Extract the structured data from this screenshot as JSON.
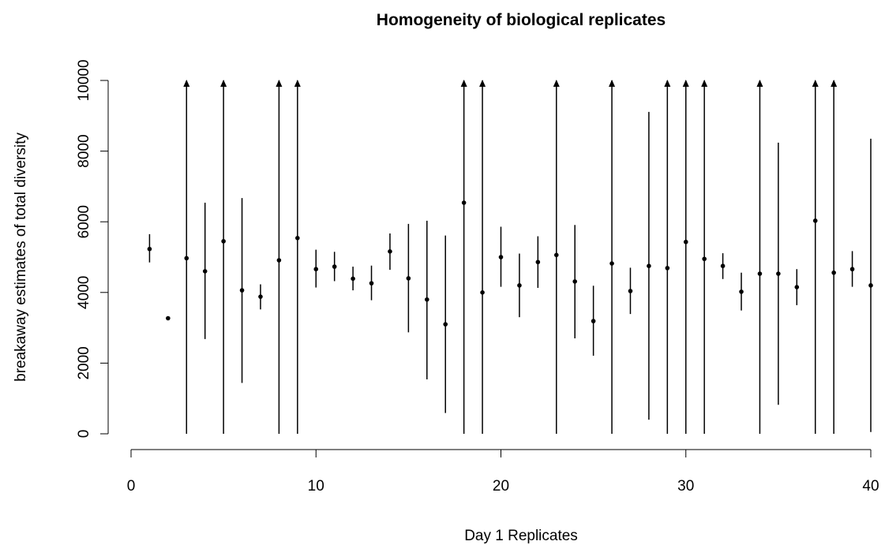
{
  "chart_data": {
    "type": "scatter",
    "title": "Homogeneity of biological replicates",
    "x_label": "Day 1 Replicates",
    "y_label": "breakaway estimates of total diversity",
    "x": [
      1,
      2,
      3,
      4,
      5,
      6,
      7,
      8,
      9,
      10,
      11,
      12,
      13,
      14,
      15,
      16,
      17,
      18,
      19,
      20,
      21,
      22,
      23,
      24,
      25,
      26,
      27,
      28,
      29,
      30,
      31,
      32,
      33,
      34,
      35,
      36,
      37,
      38,
      39,
      40
    ],
    "y": [
      5230,
      3270,
      4970,
      4600,
      5450,
      4060,
      3880,
      4910,
      5540,
      4660,
      4730,
      4390,
      4260,
      5160,
      4400,
      3800,
      3100,
      6540,
      4000,
      5000,
      4200,
      4860,
      5060,
      4310,
      3190,
      4820,
      4040,
      4750,
      4690,
      5430,
      4950,
      4750,
      4020,
      4530,
      4530,
      4150,
      6030,
      4560,
      4660,
      4200
    ],
    "lower": [
      4850,
      null,
      0,
      2680,
      0,
      1440,
      3520,
      0,
      0,
      4140,
      4320,
      4060,
      3780,
      4640,
      2870,
      1540,
      590,
      0,
      0,
      4160,
      3300,
      4130,
      0,
      2700,
      2210,
      0,
      3390,
      400,
      0,
      0,
      0,
      4380,
      3490,
      0,
      820,
      3640,
      0,
      0,
      4160,
      50
    ],
    "upper": [
      5650,
      null,
      10000,
      6540,
      10000,
      6670,
      4230,
      10000,
      10000,
      5210,
      5150,
      4730,
      4760,
      5670,
      5940,
      6030,
      5610,
      10000,
      10000,
      5860,
      5100,
      5590,
      10000,
      5910,
      4190,
      10000,
      4700,
      9110,
      10000,
      10000,
      10000,
      5110,
      4560,
      10000,
      8240,
      4660,
      10000,
      10000,
      5170,
      8350
    ],
    "color": "#000000",
    "xlim": [
      0,
      40
    ],
    "xticks": [
      0,
      10,
      20,
      30,
      40
    ],
    "ylim": [
      0,
      10000
    ],
    "yticks": [
      0,
      2000,
      4000,
      6000,
      8000,
      10000
    ]
  }
}
